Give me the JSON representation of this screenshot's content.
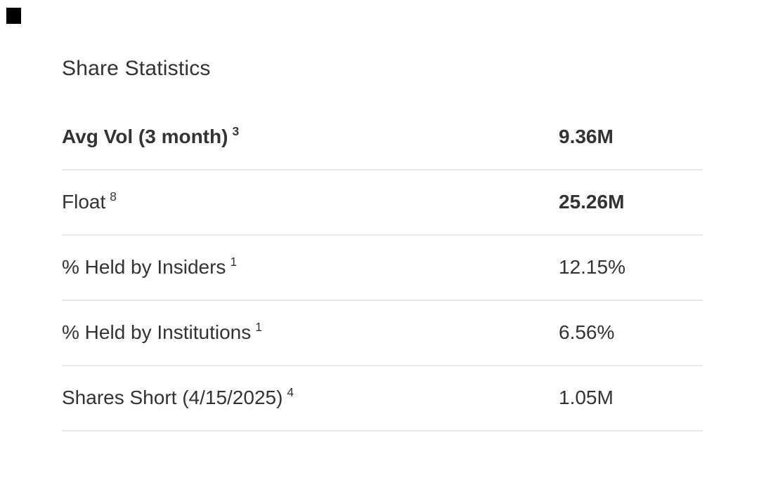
{
  "colors": {
    "text": "#333333",
    "divider": "#e8e8ea",
    "background": "#ffffff",
    "corner_mark": "#000000"
  },
  "section": {
    "title": "Share Statistics"
  },
  "table": {
    "rows": [
      {
        "label": "Avg Vol (3 month)",
        "footnote": "3",
        "value": "9.36M"
      },
      {
        "label": "Float",
        "footnote": "8",
        "value": "25.26M"
      },
      {
        "label": "% Held by Insiders",
        "footnote": "1",
        "value": "12.15%"
      },
      {
        "label": "% Held by Institutions",
        "footnote": "1",
        "value": "6.56%"
      },
      {
        "label": "Shares Short (4/15/2025)",
        "footnote": "4",
        "value": "1.05M"
      }
    ]
  }
}
